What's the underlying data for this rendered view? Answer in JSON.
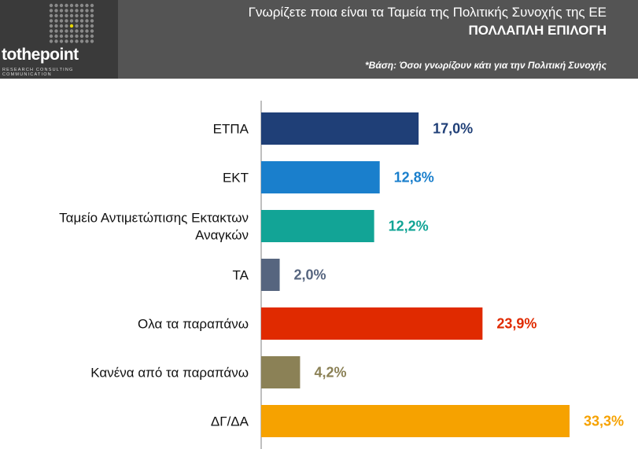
{
  "header": {
    "logo_text_a": "tothe",
    "logo_text_b": "point",
    "logo_tagline": "RESEARCH  CONSULTING  COMMUNICATION",
    "title": "Γνωρίζετε ποια είναι τα Ταμεία της Πολιτικής Συνοχής της ΕΕ",
    "subtitle": "ΠΟΛΛΑΠΛΗ ΕΠΙΛΟΓΗ",
    "note": "*Βάση: Όσοι γνωρίζουν κάτι για την Πολιτική Συνοχής"
  },
  "colors": {
    "header_bg": "#545454",
    "logo_dot_accent": "#e8d800"
  },
  "chart_data": {
    "type": "bar",
    "orientation": "horizontal",
    "categories": [
      [
        "ΕΤΠΑ"
      ],
      [
        "ΕΚΤ"
      ],
      [
        "Ταμείο Αντιμετώπισης Εκτακτων",
        "Αναγκών"
      ],
      [
        "ΤΑ"
      ],
      [
        "Ολα τα παραπάνω"
      ],
      [
        "Κανένα από τα παραπάνω"
      ],
      [
        "ΔΓ/ΔΑ"
      ]
    ],
    "values": [
      17.0,
      12.8,
      12.2,
      2.0,
      23.9,
      4.2,
      33.3
    ],
    "value_labels": [
      "17,0%",
      "12,8%",
      "12,2%",
      "2,0%",
      "23,9%",
      "4,2%",
      "33,3%"
    ],
    "colors": [
      "#1f3f77",
      "#1a7fcc",
      "#12a496",
      "#56657f",
      "#e02a00",
      "#8b8156",
      "#f6a200"
    ],
    "xlim": [
      0,
      33.3
    ],
    "grid": false,
    "legend": "none"
  }
}
